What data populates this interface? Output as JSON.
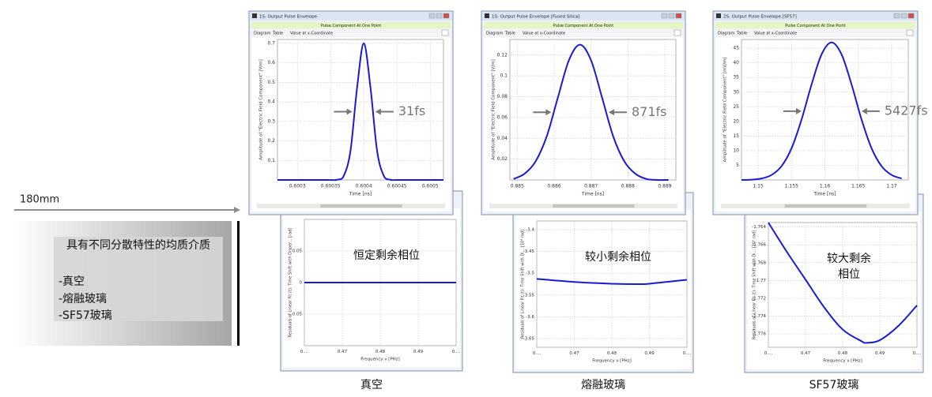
{
  "slide": {
    "distance_label": "180mm",
    "medium_box": {
      "title": "具有不同分散特性的均质介质",
      "items": [
        "-真空",
        "-熔融玻璃",
        "-SF57玻璃"
      ]
    }
  },
  "panels": [
    {
      "caption": "真空",
      "envelope": {
        "window_title": "1S: Output Pulse Envelope",
        "header": "Pulse Component At One Point",
        "tabs": [
          "Diagram",
          "Table",
          "Value at x-Coordinate"
        ],
        "x_label": "Time [ns]",
        "y_label": "Amplitude of \"Electric Field Component\" [V/m]",
        "x": [
          0.60027,
          0.60034,
          0.60035,
          0.60036,
          0.60037,
          0.60038,
          0.60039,
          0.6004,
          0.60041,
          0.60042,
          0.60043,
          0.60044,
          0.60045,
          0.60046,
          0.60052
        ],
        "values": [
          0,
          0,
          0,
          0.001,
          0.022,
          0.15,
          0.476,
          0.7,
          0.476,
          0.15,
          0.022,
          0.001,
          0,
          0,
          0
        ],
        "xlim": [
          0.60027,
          0.60052
        ],
        "xticks": [
          0.6003,
          0.60035,
          0.6004,
          0.60045,
          0.6005
        ],
        "ylim": [
          0,
          0.72
        ],
        "yticks": [
          0.1,
          0.2,
          0.3,
          0.4,
          0.5,
          0.6,
          0.7
        ],
        "color": "#1a1ad6",
        "fwhm_label": "31fs"
      },
      "residual": {
        "annotation": [
          "恒定剩余相位"
        ],
        "x_label": "Frequency ν [PHz]",
        "y_label": "Residuals of Linear Fit (t): Time Shift with Disper... [rad]",
        "x": [
          0.46,
          0.5
        ],
        "values": [
          0,
          0
        ],
        "xlim": [
          0.46,
          0.5
        ],
        "xticks": [
          {
            "value": 0.46,
            "label": "0...."
          },
          0.47,
          0.48,
          0.49,
          {
            "value": 0.5,
            "label": "0...."
          }
        ],
        "ylim": [
          -0.1,
          0.1
        ],
        "yticks": [
          -0.05,
          0,
          0.05
        ],
        "color": "#1a1ad6"
      }
    },
    {
      "caption": "熔融玻璃",
      "envelope": {
        "window_title": "1S: Output Pulse Envelope [Fused Silica]",
        "header": "Pulse Component At One Point",
        "tabs": [
          "Diagram",
          "Table",
          "Value at x-Coordinate"
        ],
        "x_label": "Time [ns]",
        "y_label": "Amplitude of \"Electric Field Component\" [V/m]",
        "x": [
          0.8849,
          0.8852,
          0.8855,
          0.8858,
          0.8861,
          0.8864,
          0.8867,
          0.887,
          0.8873,
          0.8876,
          0.8879,
          0.8882,
          0.8885,
          0.8888,
          0.8891
        ],
        "values": [
          0.001,
          0.006,
          0.018,
          0.042,
          0.079,
          0.115,
          0.13,
          0.115,
          0.079,
          0.042,
          0.018,
          0.006,
          0.001,
          0,
          0
        ],
        "xlim": [
          0.8848,
          0.8893
        ],
        "xticks": [
          0.885,
          0.886,
          0.887,
          0.888,
          0.889
        ],
        "ylim": [
          0,
          0.135
        ],
        "yticks": [
          0.02,
          0.04,
          0.06,
          0.08,
          0.1,
          0.12
        ],
        "color": "#1a1ad6",
        "fwhm_label": "871fs"
      },
      "residual": {
        "annotation": [
          "较小剩余相位"
        ],
        "x_label": "Frequency ν [PHz]",
        "y_label": "Residuals of Linear Fit (t): Time Shift with Di... [10⁴ rad]",
        "x": [
          0.46,
          0.47,
          0.48,
          0.487,
          0.49,
          0.5
        ],
        "values": [
          -3.513,
          -3.52,
          -3.524,
          -3.525,
          -3.524,
          -3.515
        ],
        "xlim": [
          0.46,
          0.5
        ],
        "xticks": [
          {
            "value": 0.46,
            "label": "0...."
          },
          0.47,
          0.48,
          0.49,
          {
            "value": 0.5,
            "label": "0...."
          }
        ],
        "ylim": [
          -3.67,
          -3.38
        ],
        "yticks": [
          -3.65,
          -3.6,
          -3.55,
          -3.5,
          -3.45,
          -3.4
        ],
        "color": "#1a1ad6"
      }
    },
    {
      "caption": "SF57玻璃",
      "envelope": {
        "window_title": "2S: Output Pulse Envelope [SF57]",
        "header": "Pulse Component At One Point",
        "tabs": [
          "Diagram",
          "Table",
          "Value at x-Coordinate"
        ],
        "x_label": "Time [ns]",
        "y_label": "Amplitude of \"Electric Field Component\" [mV/m]",
        "x": [
          1.1475,
          1.149,
          1.1505,
          1.152,
          1.1535,
          1.155,
          1.1565,
          1.158,
          1.1595,
          1.161,
          1.1625,
          1.164,
          1.1655,
          1.167,
          1.1685,
          1.17,
          1.1715
        ],
        "values": [
          0,
          0.1,
          0.5,
          1.7,
          4.7,
          10.8,
          20.6,
          32.6,
          42.9,
          47,
          42.9,
          32.6,
          20.6,
          10.8,
          4.7,
          1.7,
          0.5
        ],
        "xlim": [
          1.1475,
          1.1725
        ],
        "xticks": [
          1.15,
          1.155,
          1.16,
          1.165,
          1.17
        ],
        "ylim": [
          0,
          48
        ],
        "yticks": [
          5,
          10,
          15,
          20,
          25,
          30,
          35,
          40,
          45
        ],
        "color": "#1a1ad6",
        "fwhm_label": "5427fs"
      },
      "residual": {
        "annotation": [
          "较大剩余",
          "相位"
        ],
        "x_label": "Frequency ν [PHz]",
        "y_label": "Residuals of Linear Fit (t): Time Shift with Di... [10⁵ rad]",
        "x": [
          0.46,
          0.465,
          0.47,
          0.475,
          0.48,
          0.485,
          0.4865,
          0.49,
          0.495,
          0.5
        ],
        "values": [
          -1.7635,
          -1.7668,
          -1.7699,
          -1.773,
          -1.7755,
          -1.7768,
          -1.777,
          -1.7767,
          -1.7751,
          -1.7728
        ],
        "xlim": [
          0.46,
          0.5
        ],
        "xticks": [
          {
            "value": 0.46,
            "label": "0...."
          },
          0.47,
          0.48,
          0.49,
          {
            "value": 0.5,
            "label": "0...."
          }
        ],
        "ylim": [
          -1.7775,
          -1.7635
        ],
        "yticks": [
          -1.776,
          -1.774,
          -1.772,
          -1.77,
          -1.768,
          -1.766,
          -1.764
        ],
        "color": "#1a1ad6"
      }
    }
  ]
}
